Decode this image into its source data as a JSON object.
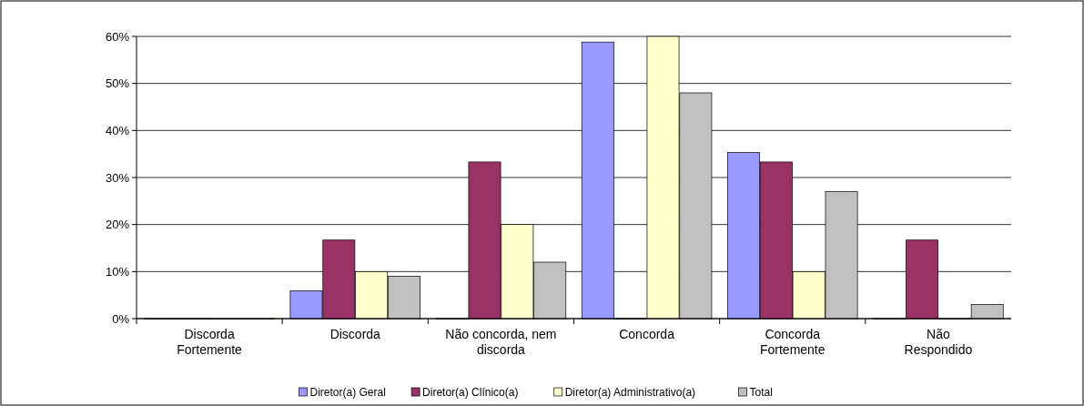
{
  "chart_data": {
    "type": "bar",
    "categories": [
      "Discorda Fortemente",
      "Discorda",
      "Não concorda, nem discorda",
      "Concorda",
      "Concorda Fortemente",
      "Não Respondido"
    ],
    "series": [
      {
        "name": "Diretor(a) Geral",
        "color": "#9999ff",
        "values": [
          0,
          5.9,
          0,
          58.8,
          35.3,
          0
        ]
      },
      {
        "name": "Diretor(a) Clínico(a)",
        "color": "#993366",
        "values": [
          0,
          16.7,
          33.3,
          0,
          33.3,
          16.7
        ]
      },
      {
        "name": "Diretor(a) Administrativo(a)",
        "color": "#ffffcc",
        "values": [
          0,
          10,
          20,
          60,
          10,
          0
        ]
      },
      {
        "name": "Total",
        "color": "#c0c0c0",
        "values": [
          0,
          9,
          12,
          48,
          27,
          3
        ]
      }
    ],
    "ylim": [
      0,
      60
    ],
    "yticks": [
      {
        "value": 0,
        "label": "0%"
      },
      {
        "value": 10,
        "label": "10%"
      },
      {
        "value": 20,
        "label": "20%"
      },
      {
        "value": 30,
        "label": "30%"
      },
      {
        "value": 40,
        "label": "40%"
      },
      {
        "value": 50,
        "label": "50%"
      },
      {
        "value": 60,
        "label": "60%"
      }
    ],
    "grid": "y",
    "legend": "bottom"
  }
}
